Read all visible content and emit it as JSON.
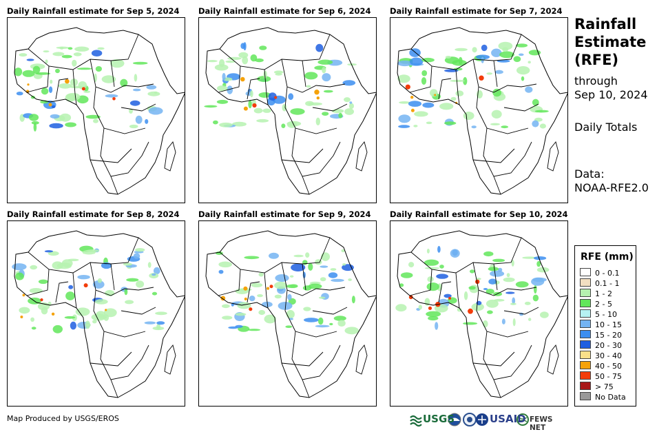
{
  "panels": [
    {
      "title": "Daily Rainfall estimate for Sep 5, 2024"
    },
    {
      "title": "Daily Rainfall estimate for Sep 6, 2024"
    },
    {
      "title": "Daily Rainfall estimate for Sep 7, 2024"
    },
    {
      "title": "Daily Rainfall estimate for Sep 8, 2024"
    },
    {
      "title": "Daily Rainfall estimate for Sep 9, 2024"
    },
    {
      "title": "Daily Rainfall estimate for Sep 10, 2024"
    }
  ],
  "side": {
    "title_line1": "Rainfall",
    "title_line2": "Estimate",
    "title_line3": "(RFE)",
    "through_line1": "through",
    "through_line2": "Sep 10, 2024",
    "totals": "Daily Totals",
    "data_line1": "Data:",
    "data_line2": "NOAA-RFE2.0"
  },
  "legend": {
    "title": "RFE (mm)",
    "items": [
      {
        "label": "0 - 0.1",
        "color": "#ffffff"
      },
      {
        "label": "0.1 - 1",
        "color": "#f2dfc2"
      },
      {
        "label": "1 - 2",
        "color": "#b6f2b0"
      },
      {
        "label": "2 - 5",
        "color": "#62e65a"
      },
      {
        "label": "5 - 10",
        "color": "#b6f2f2"
      },
      {
        "label": "10 - 15",
        "color": "#74b4f2"
      },
      {
        "label": "15 - 20",
        "color": "#3c8ef0"
      },
      {
        "label": "20 - 30",
        "color": "#1f5fe0"
      },
      {
        "label": "30 - 40",
        "color": "#fae08a"
      },
      {
        "label": "40 - 50",
        "color": "#f5a20a"
      },
      {
        "label": "50 - 75",
        "color": "#f23c0a"
      },
      {
        "label": "> 75",
        "color": "#a81818"
      },
      {
        "label": "No Data",
        "color": "#999999"
      }
    ]
  },
  "footer": {
    "credit": "Map Produced by USGS/EROS"
  },
  "logos": {
    "usgs": "USGS",
    "usaid": "USAID",
    "fews": "FEWS NET"
  }
}
